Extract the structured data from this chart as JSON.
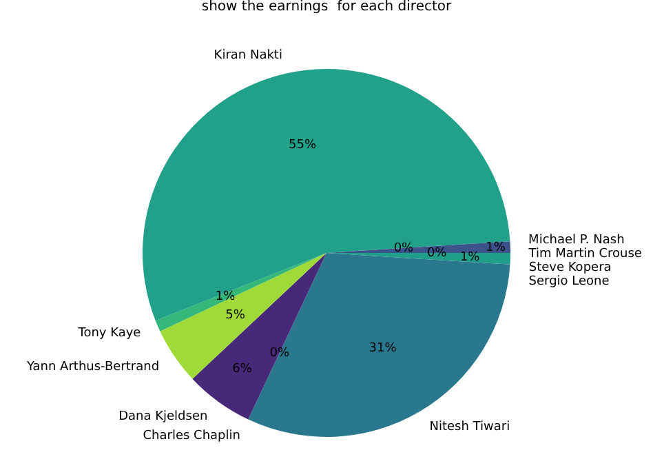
{
  "chart_data": {
    "type": "pie",
    "title": "show the earnings  for each director",
    "categories": [
      "Steve Kopera",
      "Sergio Leone",
      "Nitesh Tiwari",
      "Charles Chaplin",
      "Dana Kjeldsen",
      "Yann Arthus-Bertrand",
      "Tony Kaye",
      "Kiran Nakti",
      "Michael P. Nash",
      "Tim Martin Crouse"
    ],
    "values": [
      0,
      1,
      31,
      0,
      6,
      5,
      1,
      55,
      0,
      1
    ],
    "value_labels": [
      "0%",
      "1%",
      "31%",
      "0%",
      "6%",
      "5%",
      "1%",
      "55%",
      "0%",
      "1%"
    ],
    "colors": [
      "#26828e",
      "#1f9e89",
      "#2a788e",
      "#3e4989",
      "#482878",
      "#a0da39",
      "#35b779",
      "#21a08a",
      "#31688e",
      "#3b528b"
    ],
    "legend": false
  }
}
